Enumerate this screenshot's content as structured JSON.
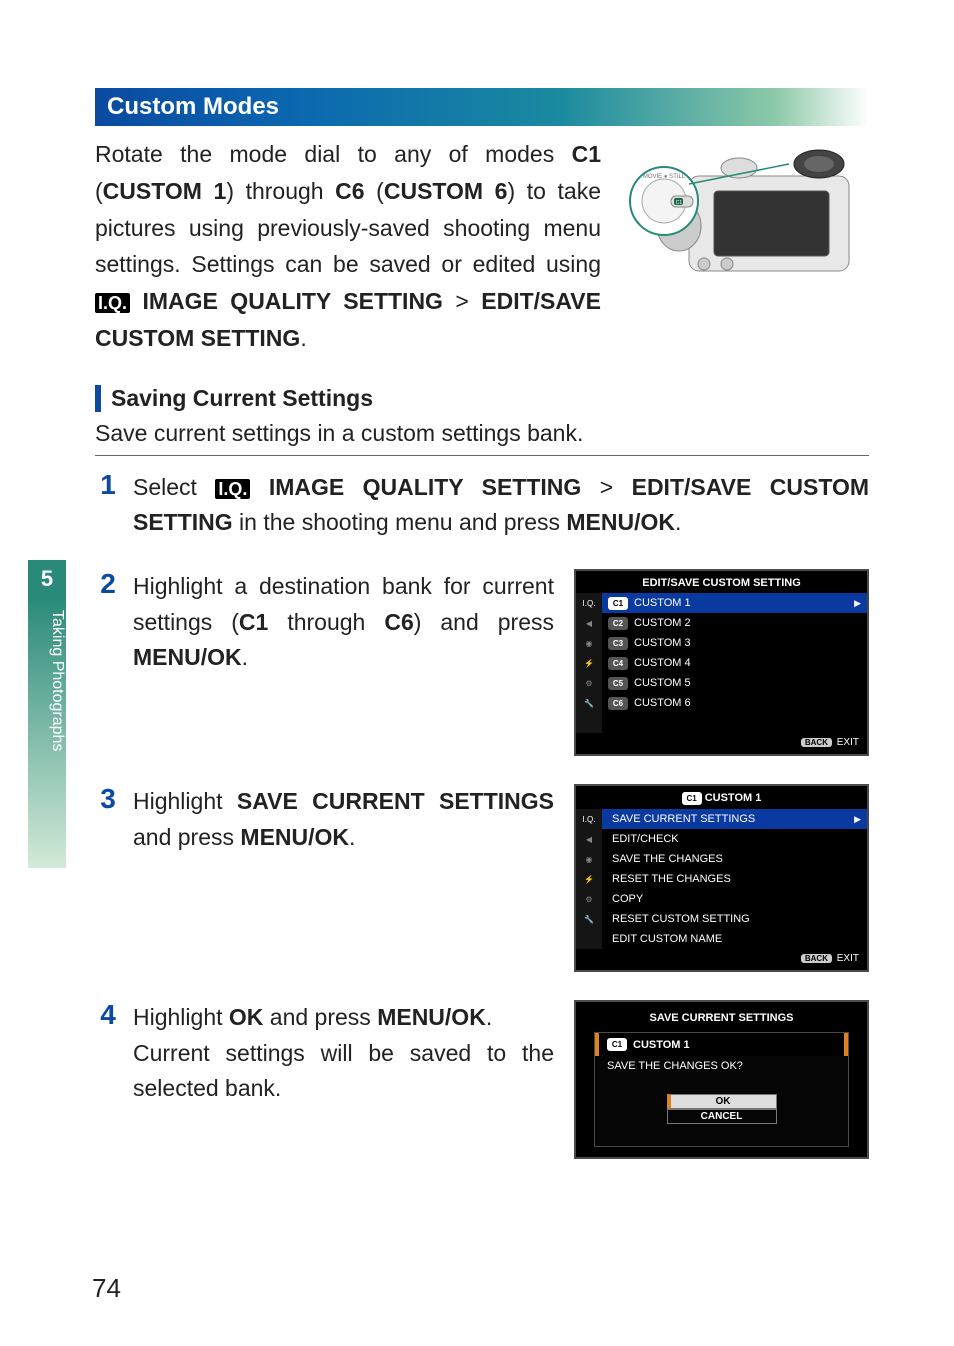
{
  "side": {
    "chapter_num": "5",
    "chapter_label": "Taking Photographs"
  },
  "section_title": "Custom Modes",
  "intro": {
    "pre": "Rotate the mode dial to any of modes ",
    "c1": "C1",
    "c1_label": "CUSTOM 1",
    "mid1": " (",
    "close1": ") through ",
    "c6": "C6",
    "c6_label": "CUSTOM 6",
    "close2": ")",
    "line2": " to take pictures using previously-saved shooting menu settings. Settings can be saved or edited using ",
    "iq_icon": "I.Q.",
    "iq_label": "IMAGE QUALITY SETTING",
    "gt": " > ",
    "edit_label": "EDIT/SAVE CUSTOM SETTING",
    "period": "."
  },
  "sub_heading": "Saving Current Settings",
  "sub_lead": "Save current settings in a custom settings bank.",
  "step1": {
    "pre": "Select ",
    "iq_icon": "I.Q.",
    "iq_label": "IMAGE QUALITY SETTING",
    "gt": " > ",
    "edit_label": "EDIT/SAVE CUSTOM SETTING",
    "post": " in the shooting menu and press ",
    "btn": "MENU/OK",
    "period": "."
  },
  "step2": {
    "text_pre": "Highlight a destination bank for current settings (",
    "b1": "C1",
    "text_mid": " through ",
    "b2": "C6",
    "text_post": ") and press ",
    "btn": "MENU/OK",
    "period": "."
  },
  "step3": {
    "pre": "Highlight ",
    "label": "SAVE CURRENT SETTINGS",
    "post": " and press ",
    "btn": "MENU/OK",
    "period": "."
  },
  "step4": {
    "pre": "Highlight ",
    "ok": "OK",
    "mid": " and press ",
    "btn": "MENU/OK",
    "period": ".",
    "line2": "Current settings will be saved to the selected bank."
  },
  "lcd1": {
    "title": "EDIT/SAVE CUSTOM SETTING",
    "items": [
      {
        "badge": "C1",
        "label": "CUSTOM 1",
        "selected": true
      },
      {
        "badge": "C2",
        "label": "CUSTOM 2",
        "selected": false
      },
      {
        "badge": "C3",
        "label": "CUSTOM 3",
        "selected": false
      },
      {
        "badge": "C4",
        "label": "CUSTOM 4",
        "selected": false
      },
      {
        "badge": "C5",
        "label": "CUSTOM 5",
        "selected": false
      },
      {
        "badge": "C6",
        "label": "CUSTOM 6",
        "selected": false
      }
    ],
    "back": "BACK",
    "exit": "EXIT"
  },
  "lcd2": {
    "title_badge": "C1",
    "title": "CUSTOM 1",
    "items": [
      {
        "label": "SAVE CURRENT SETTINGS",
        "selected": true
      },
      {
        "label": "EDIT/CHECK"
      },
      {
        "label": "SAVE THE CHANGES"
      },
      {
        "label": "RESET THE CHANGES"
      },
      {
        "label": "COPY"
      },
      {
        "label": "RESET CUSTOM SETTING"
      },
      {
        "label": "EDIT CUSTOM NAME"
      }
    ],
    "back": "BACK",
    "exit": "EXIT"
  },
  "lcd3": {
    "title": "SAVE CURRENT SETTINGS",
    "head_badge": "C1",
    "head_label": "CUSTOM 1",
    "question": "SAVE THE CHANGES OK?",
    "ok": "OK",
    "cancel": "CANCEL"
  },
  "side_icons": [
    "I.Q.",
    "AF/MF",
    "◉",
    "⚡",
    "⚙",
    "🔧"
  ],
  "page_number": "74"
}
